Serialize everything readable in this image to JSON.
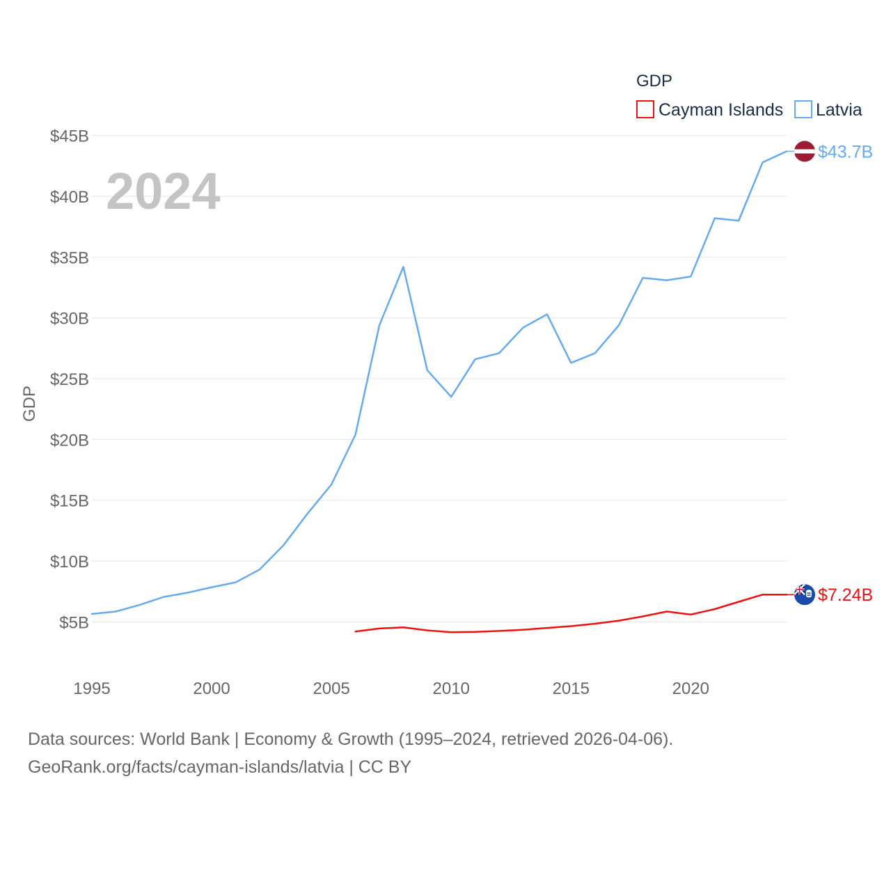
{
  "chart_data": {
    "type": "line",
    "legend_title": "GDP",
    "ylabel": "GDP",
    "xlabel": "",
    "year_watermark": "2024",
    "x": [
      1995,
      1996,
      1997,
      1998,
      1999,
      2000,
      2001,
      2002,
      2003,
      2004,
      2005,
      2006,
      2007,
      2008,
      2009,
      2010,
      2011,
      2012,
      2013,
      2014,
      2015,
      2016,
      2017,
      2018,
      2019,
      2020,
      2021,
      2022,
      2023,
      2024
    ],
    "xlim": [
      1995,
      2024
    ],
    "ylim": [
      2.5,
      45.5
    ],
    "x_ticks": [
      1995,
      2000,
      2005,
      2010,
      2015,
      2020
    ],
    "x_tick_labels": [
      "1995",
      "2000",
      "2005",
      "2010",
      "2015",
      "2020"
    ],
    "y_ticks": [
      5,
      10,
      15,
      20,
      25,
      30,
      35,
      40,
      45
    ],
    "y_tick_labels": [
      "$5B",
      "$10B",
      "$15B",
      "$20B",
      "$25B",
      "$30B",
      "$35B",
      "$40B",
      "$45B"
    ],
    "grid": true,
    "legend_position": "top-right",
    "series": [
      {
        "name": "Cayman Islands",
        "color": "#ee1111",
        "flag": "cayman-islands-flag-icon",
        "end_label": "$7.24B",
        "values": [
          null,
          null,
          null,
          null,
          null,
          null,
          null,
          null,
          null,
          null,
          null,
          4.2,
          4.45,
          4.55,
          4.3,
          4.15,
          4.17,
          4.25,
          4.35,
          4.5,
          4.65,
          4.85,
          5.1,
          5.45,
          5.85,
          5.6,
          6.05,
          6.65,
          7.24,
          7.24
        ]
      },
      {
        "name": "Latvia",
        "color": "#66aaee",
        "flag": "latvia-flag-icon",
        "end_label": "$43.7B",
        "values": [
          5.65,
          5.85,
          6.4,
          7.05,
          7.4,
          7.85,
          8.25,
          9.3,
          11.3,
          13.9,
          16.3,
          20.4,
          29.4,
          34.2,
          25.7,
          23.5,
          26.6,
          27.1,
          29.2,
          30.3,
          26.3,
          27.1,
          29.4,
          33.3,
          33.1,
          33.4,
          38.2,
          38.0,
          42.8,
          43.7
        ]
      }
    ]
  },
  "source": {
    "line1": "Data sources: World Bank | Economy & Growth (1995–2024, retrieved 2026-04-06).",
    "line2": "GeoRank.org/facts/cayman-islands/latvia | CC BY"
  }
}
